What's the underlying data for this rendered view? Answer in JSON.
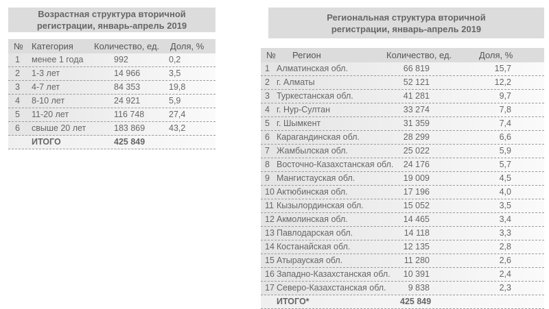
{
  "age_table": {
    "title": "Возрастная структура вторичной регистрации, январь-апрель 2019",
    "headers": {
      "num": "№",
      "category": "Категория",
      "count": "Количество, ед.",
      "share": "Доля, %"
    },
    "rows": [
      {
        "num": "1",
        "category": "менее 1 года",
        "count": "992",
        "share": "0,2"
      },
      {
        "num": "2",
        "category": "1-3 лет",
        "count": "14 966",
        "share": "3,5"
      },
      {
        "num": "3",
        "category": "4-7 лет",
        "count": "84 353",
        "share": "19,8"
      },
      {
        "num": "4",
        "category": "8-10 лет",
        "count": "24 921",
        "share": "5,9"
      },
      {
        "num": "5",
        "category": "11-20 лет",
        "count": "116 748",
        "share": "27,4"
      },
      {
        "num": "6",
        "category": "свыше 20 лет",
        "count": "183 869",
        "share": "43,2"
      }
    ],
    "total": {
      "label": "ИТОГО",
      "count": "425 849"
    }
  },
  "region_table": {
    "title": "Региональная структура вторичной регистрации, январь-апрель 2019",
    "headers": {
      "num": "№",
      "region": "Регион",
      "count": "Количество, ед.",
      "share": "Доля, %"
    },
    "rows": [
      {
        "num": "1",
        "region": "Алматинская обл.",
        "count": "66 819",
        "share": "15,7"
      },
      {
        "num": "2",
        "region": "г. Алматы",
        "count": "52 121",
        "share": "12,2"
      },
      {
        "num": "3",
        "region": "Туркестанская обл.",
        "count": "41 281",
        "share": "9,7"
      },
      {
        "num": "4",
        "region": "г. Нур-Султан",
        "count": "33 274",
        "share": "7,8"
      },
      {
        "num": "5",
        "region": "г. Шымкент",
        "count": "31 359",
        "share": "7,4"
      },
      {
        "num": "6",
        "region": "Карагандинская обл.",
        "count": "28 299",
        "share": "6,6"
      },
      {
        "num": "7",
        "region": "Жамбылская обл.",
        "count": "25 022",
        "share": "5,9"
      },
      {
        "num": "8",
        "region": "Восточно-Казахстанская обл.",
        "count": "24 176",
        "share": "5,7"
      },
      {
        "num": "9",
        "region": "Мангистауская обл.",
        "count": "19 009",
        "share": "4,5"
      },
      {
        "num": "10",
        "region": "Актюбинская обл.",
        "count": "17 196",
        "share": "4,0"
      },
      {
        "num": "11",
        "region": "Кызылординская обл.",
        "count": "15 052",
        "share": "3,5"
      },
      {
        "num": "12",
        "region": "Акмолинская обл.",
        "count": "14 465",
        "share": "3,4"
      },
      {
        "num": "13",
        "region": "Павлодарская обл.",
        "count": "14 118",
        "share": "3,3"
      },
      {
        "num": "14",
        "region": "Костанайская обл.",
        "count": "12 135",
        "share": "2,8"
      },
      {
        "num": "15",
        "region": "Атырауская обл.",
        "count": "11 280",
        "share": "2,6"
      },
      {
        "num": "16",
        "region": "Западно-Казахстанская обл.",
        "count": "10 391",
        "share": "2,4"
      },
      {
        "num": "17",
        "region": "Северо-Казахстанская обл.",
        "count": "9 838",
        "share": "2,3"
      }
    ],
    "total": {
      "label": "ИТОГО*",
      "count": "425 849"
    }
  }
}
